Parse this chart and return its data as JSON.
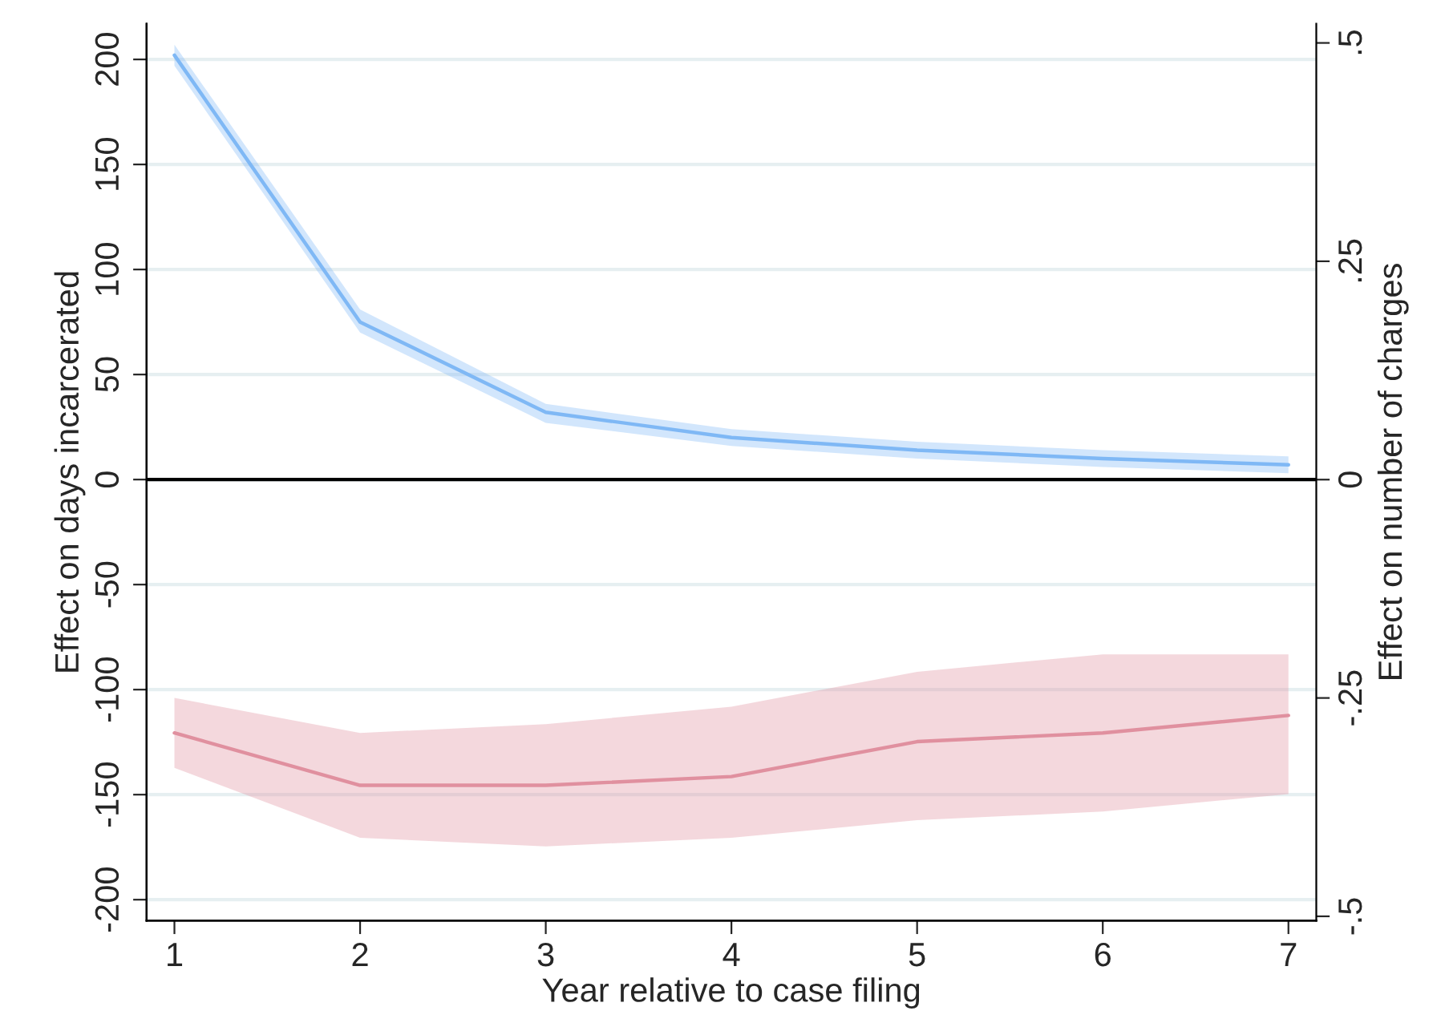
{
  "chart_data": {
    "type": "line",
    "xlabel": "Year relative to case filing",
    "ylabel": "Effect on days incarcerated",
    "y2label": "Effect on number of charges",
    "x": [
      1,
      2,
      3,
      4,
      5,
      6,
      7
    ],
    "series": [
      {
        "color": "#7fb8f5",
        "values": [
          202,
          75,
          32,
          20,
          14,
          10,
          7
        ],
        "lower": [
          197,
          70,
          27,
          16,
          10,
          6,
          3
        ],
        "upper": [
          207,
          81,
          36,
          24,
          18,
          14,
          11
        ]
      },
      {
        "color": "#e0909f",
        "axis": "y2",
        "values": [
          -0.29,
          -0.35,
          -0.35,
          -0.34,
          -0.3,
          -0.29,
          -0.27
        ],
        "lower": [
          -0.33,
          -0.41,
          -0.42,
          -0.41,
          -0.39,
          -0.38,
          -0.36
        ],
        "upper": [
          -0.25,
          -0.29,
          -0.28,
          -0.26,
          -0.22,
          -0.2,
          -0.2
        ]
      }
    ],
    "xlim": [
      0.85,
      7.15
    ],
    "xticks": [
      1,
      2,
      3,
      4,
      5,
      6,
      7
    ],
    "ylim": [
      -210,
      217
    ],
    "yticks": [
      -200,
      -150,
      -100,
      -50,
      0,
      50,
      100,
      150,
      200
    ],
    "y2lim": [
      -0.505,
      0.522
    ],
    "y2ticks": [
      {
        "value": -0.5,
        "label": "-.5"
      },
      {
        "value": -0.25,
        "label": "-.25"
      },
      0,
      {
        "value": 0.25,
        "label": ".25"
      },
      {
        "value": 0.5,
        "label": ".5"
      }
    ],
    "ref_lines": [
      {
        "axis": "y",
        "value": 0,
        "color": "#000000"
      }
    ],
    "grid": "y",
    "marker": "none",
    "line_style": "solid"
  }
}
